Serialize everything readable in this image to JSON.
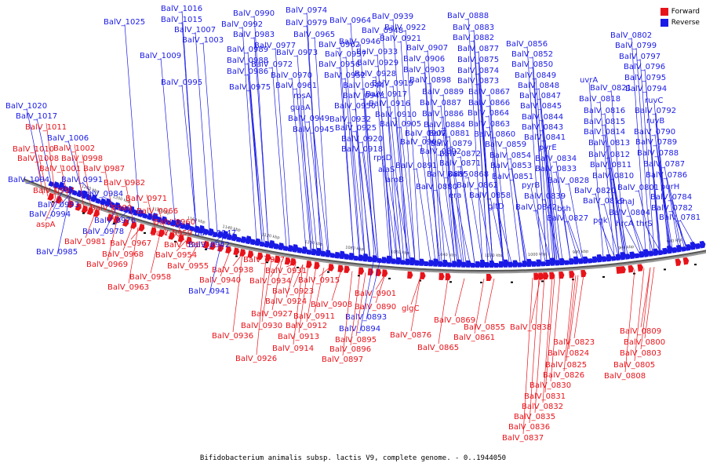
{
  "title": "Bifidobacterium animalis subsp. lactis V9, complete genome. - 0..1944050",
  "legend": {
    "forward": {
      "label": "Forward",
      "color": "#e8131a"
    },
    "reverse": {
      "label": "Reverse",
      "color": "#1a1ae6"
    }
  },
  "ticks": [
    "1220 kbp",
    "1200 kbp",
    "1180 kbp",
    "1160 kbp",
    "1140 kbp",
    "1120 kbp",
    "1100 kbp",
    "1080 kbp",
    "1060 kbp",
    "1040 kbp",
    "1020 kbp",
    "1000 kbp",
    "980 kbp",
    "960 kbp",
    "940 kbp"
  ],
  "genes": [
    {
      "name": "BalV_1016",
      "strand": "reverse"
    },
    {
      "name": "BalV_1025",
      "strand": "reverse"
    },
    {
      "name": "BalV_1015",
      "strand": "reverse"
    },
    {
      "name": "BalV_1007",
      "strand": "reverse"
    },
    {
      "name": "BalV_1003",
      "strand": "reverse"
    },
    {
      "name": "BalV_1009",
      "strand": "reverse"
    },
    {
      "name": "BalV_0995",
      "strand": "reverse"
    },
    {
      "name": "BalV_1020",
      "strand": "reverse"
    },
    {
      "name": "BalV_1017",
      "strand": "reverse"
    },
    {
      "name": "BalV_1011",
      "strand": "forward"
    },
    {
      "name": "BalV_1006",
      "strand": "reverse"
    },
    {
      "name": "BalV_1010",
      "strand": "forward"
    },
    {
      "name": "BalV_1002",
      "strand": "forward"
    },
    {
      "name": "BalV_1008",
      "strand": "forward"
    },
    {
      "name": "BalV_0998",
      "strand": "forward"
    },
    {
      "name": "BalV_1001",
      "strand": "forward"
    },
    {
      "name": "BalV_0987",
      "strand": "forward"
    },
    {
      "name": "BalV_1004",
      "strand": "reverse"
    },
    {
      "name": "BalV_0991",
      "strand": "reverse"
    },
    {
      "name": "BalV_0982",
      "strand": "forward"
    },
    {
      "name": "BalV_0997",
      "strand": "forward"
    },
    {
      "name": "BalV_0984",
      "strand": "reverse"
    },
    {
      "name": "BalV_0971",
      "strand": "forward"
    },
    {
      "name": "BalV_0993",
      "strand": "reverse"
    },
    {
      "name": "BalV_0980",
      "strand": "forward"
    },
    {
      "name": "BalV_0966",
      "strand": "forward"
    },
    {
      "name": "BalV_0994",
      "strand": "reverse"
    },
    {
      "name": "BalV_0976",
      "strand": "reverse"
    },
    {
      "name": "aspA",
      "strand": "forward"
    },
    {
      "name": "BalV_0960",
      "strand": "forward"
    },
    {
      "name": "BalV_0978",
      "strand": "reverse"
    },
    {
      "name": "BalV_0959",
      "strand": "forward"
    },
    {
      "name": "BalV_0947",
      "strand": "reverse"
    },
    {
      "name": "BalV_0981",
      "strand": "forward"
    },
    {
      "name": "BalV_0967",
      "strand": "forward"
    },
    {
      "name": "BalV_0953",
      "strand": "forward"
    },
    {
      "name": "BalV_0942",
      "strand": "reverse"
    },
    {
      "name": "BalV_0985",
      "strand": "reverse"
    },
    {
      "name": "BalV_0968",
      "strand": "forward"
    },
    {
      "name": "BalV_0954",
      "strand": "forward"
    },
    {
      "name": "BalV_0969",
      "strand": "forward"
    },
    {
      "name": "BalV_0955",
      "strand": "forward"
    },
    {
      "name": "BalV_0958",
      "strand": "forward"
    },
    {
      "name": "BalV_0963",
      "strand": "forward"
    },
    {
      "name": "BalV_0990",
      "strand": "reverse"
    },
    {
      "name": "BalV_0974",
      "strand": "reverse"
    },
    {
      "name": "BalV_0992",
      "strand": "reverse"
    },
    {
      "name": "BalV_0979",
      "strand": "reverse"
    },
    {
      "name": "BalV_0964",
      "strand": "reverse"
    },
    {
      "name": "BalV_0983",
      "strand": "reverse"
    },
    {
      "name": "BalV_0965",
      "strand": "reverse"
    },
    {
      "name": "BalV_0948",
      "strand": "reverse"
    },
    {
      "name": "BalV_0977",
      "strand": "reverse"
    },
    {
      "name": "BalV_0962",
      "strand": "reverse"
    },
    {
      "name": "BalV_0946",
      "strand": "reverse"
    },
    {
      "name": "BalV_0989",
      "strand": "reverse"
    },
    {
      "name": "BalV_0973",
      "strand": "reverse"
    },
    {
      "name": "BalV_0957",
      "strand": "reverse"
    },
    {
      "name": "BalV_0988",
      "strand": "reverse"
    },
    {
      "name": "BalV_0972",
      "strand": "reverse"
    },
    {
      "name": "BalV_0956",
      "strand": "reverse"
    },
    {
      "name": "BalV_0986",
      "strand": "reverse"
    },
    {
      "name": "BalV_0970",
      "strand": "reverse"
    },
    {
      "name": "BalV_0952",
      "strand": "reverse"
    },
    {
      "name": "BalV_0975",
      "strand": "reverse"
    },
    {
      "name": "BalV_0961",
      "strand": "reverse"
    },
    {
      "name": "BalV_0944",
      "strand": "reverse"
    },
    {
      "name": "rpsA",
      "strand": "reverse"
    },
    {
      "name": "BalV_0943",
      "strand": "reverse"
    },
    {
      "name": "BalV_0950",
      "strand": "reverse"
    },
    {
      "name": "guaA",
      "strand": "reverse"
    },
    {
      "name": "BalV_0949",
      "strand": "reverse"
    },
    {
      "name": "BalV_0932",
      "strand": "reverse"
    },
    {
      "name": "BalV_0945",
      "strand": "reverse"
    },
    {
      "name": "BalV_0925",
      "strand": "reverse"
    },
    {
      "name": "BalV_0920",
      "strand": "reverse"
    },
    {
      "name": "BalV_0918",
      "strand": "reverse"
    },
    {
      "name": "BalV_0939",
      "strand": "reverse"
    },
    {
      "name": "BalV_0922",
      "strand": "reverse"
    },
    {
      "name": "BalV_0921",
      "strand": "reverse"
    },
    {
      "name": "BalV_0907",
      "strand": "reverse"
    },
    {
      "name": "BalV_0933",
      "strand": "reverse"
    },
    {
      "name": "BalV_0906",
      "strand": "reverse"
    },
    {
      "name": "BalV_0929",
      "strand": "reverse"
    },
    {
      "name": "BalV_0903",
      "strand": "reverse"
    },
    {
      "name": "BalV_0928",
      "strand": "reverse"
    },
    {
      "name": "BalV_0898",
      "strand": "reverse"
    },
    {
      "name": "BalV_0919",
      "strand": "reverse"
    },
    {
      "name": "BalV_0917",
      "strand": "reverse"
    },
    {
      "name": "BalV_0916",
      "strand": "reverse"
    },
    {
      "name": "BalV_0910",
      "strand": "reverse"
    },
    {
      "name": "BalV_0905",
      "strand": "reverse"
    },
    {
      "name": "BalV_0902",
      "strand": "reverse"
    },
    {
      "name": "BalV_0900",
      "strand": "reverse"
    },
    {
      "name": "rpsD",
      "strand": "reverse"
    },
    {
      "name": "BalV_0892",
      "strand": "reverse"
    },
    {
      "name": "alaS",
      "strand": "reverse"
    },
    {
      "name": "BalV_0891",
      "strand": "reverse"
    },
    {
      "name": "aroB",
      "strand": "reverse"
    },
    {
      "name": "BalV_0885",
      "strand": "reverse"
    },
    {
      "name": "BalV_0880",
      "strand": "reverse"
    },
    {
      "name": "era",
      "strand": "reverse"
    },
    {
      "name": "BalV_0888",
      "strand": "reverse"
    },
    {
      "name": "BalV_0883",
      "strand": "reverse"
    },
    {
      "name": "BalV_0882",
      "strand": "reverse"
    },
    {
      "name": "BalV_0877",
      "strand": "reverse"
    },
    {
      "name": "BalV_0875",
      "strand": "reverse"
    },
    {
      "name": "BalV_0874",
      "strand": "reverse"
    },
    {
      "name": "BalV_0873",
      "strand": "reverse"
    },
    {
      "name": "BalV_0889",
      "strand": "reverse"
    },
    {
      "name": "BalV_0867",
      "strand": "reverse"
    },
    {
      "name": "BalV_0887",
      "strand": "reverse"
    },
    {
      "name": "BalV_0866",
      "strand": "reverse"
    },
    {
      "name": "BalV_0886",
      "strand": "reverse"
    },
    {
      "name": "BalV_0864",
      "strand": "reverse"
    },
    {
      "name": "BalV_0884",
      "strand": "reverse"
    },
    {
      "name": "BalV_0863",
      "strand": "reverse"
    },
    {
      "name": "BalV_0881",
      "strand": "reverse"
    },
    {
      "name": "BalV_0860",
      "strand": "reverse"
    },
    {
      "name": "BalV_0879",
      "strand": "reverse"
    },
    {
      "name": "BalV_0859",
      "strand": "reverse"
    },
    {
      "name": "BalV_0872",
      "strand": "reverse"
    },
    {
      "name": "BalV_0854",
      "strand": "reverse"
    },
    {
      "name": "BalV_0871",
      "strand": "reverse"
    },
    {
      "name": "BalV_0853",
      "strand": "reverse"
    },
    {
      "name": "BalV_0868",
      "strand": "reverse"
    },
    {
      "name": "BalV_0851",
      "strand": "reverse"
    },
    {
      "name": "BalV_0862",
      "strand": "reverse"
    },
    {
      "name": "BalV_0858",
      "strand": "reverse"
    },
    {
      "name": "gltD",
      "strand": "reverse"
    },
    {
      "name": "BalV_0856",
      "strand": "reverse"
    },
    {
      "name": "BalV_0852",
      "strand": "reverse"
    },
    {
      "name": "BalV_0850",
      "strand": "reverse"
    },
    {
      "name": "BalV_0849",
      "strand": "reverse"
    },
    {
      "name": "BalV_0848",
      "strand": "reverse"
    },
    {
      "name": "BalV_0847",
      "strand": "reverse"
    },
    {
      "name": "BalV_0845",
      "strand": "reverse"
    },
    {
      "name": "BalV_0844",
      "strand": "reverse"
    },
    {
      "name": "BalV_0843",
      "strand": "reverse"
    },
    {
      "name": "BalV_0841",
      "strand": "reverse"
    },
    {
      "name": "pyrE",
      "strand": "reverse"
    },
    {
      "name": "BalV_0834",
      "strand": "reverse"
    },
    {
      "name": "BalV_0833",
      "strand": "reverse"
    },
    {
      "name": "BalV_0828",
      "strand": "reverse"
    },
    {
      "name": "pyrB",
      "strand": "reverse"
    },
    {
      "name": "BalV_0839",
      "strand": "reverse"
    },
    {
      "name": "BalV_0842",
      "strand": "reverse"
    },
    {
      "name": "bsh",
      "strand": "reverse"
    },
    {
      "name": "BalV_0827",
      "strand": "reverse"
    },
    {
      "name": "uvrA",
      "strand": "reverse"
    },
    {
      "name": "BalV_0821",
      "strand": "reverse"
    },
    {
      "name": "BalV_0818",
      "strand": "reverse"
    },
    {
      "name": "BalV_0816",
      "strand": "reverse"
    },
    {
      "name": "BalV_0815",
      "strand": "reverse"
    },
    {
      "name": "BalV_0814",
      "strand": "reverse"
    },
    {
      "name": "BalV_0813",
      "strand": "reverse"
    },
    {
      "name": "BalV_0812",
      "strand": "reverse"
    },
    {
      "name": "BalV_0811",
      "strand": "reverse"
    },
    {
      "name": "BalV_0810",
      "strand": "reverse"
    },
    {
      "name": "BalV_0820",
      "strand": "reverse"
    },
    {
      "name": "BalV_0819",
      "strand": "reverse"
    },
    {
      "name": "pgk",
      "strand": "reverse"
    },
    {
      "name": "dnaJ",
      "strand": "reverse"
    },
    {
      "name": "hrcA",
      "strand": "reverse"
    },
    {
      "name": "BalV_0804",
      "strand": "reverse"
    },
    {
      "name": "thrS",
      "strand": "reverse"
    },
    {
      "name": "BalV_0801",
      "strand": "reverse"
    },
    {
      "name": "BalV_0802",
      "strand": "reverse"
    },
    {
      "name": "BalV_0799",
      "strand": "reverse"
    },
    {
      "name": "BalV_0797",
      "strand": "reverse"
    },
    {
      "name": "BalV_0796",
      "strand": "reverse"
    },
    {
      "name": "BalV_0795",
      "strand": "reverse"
    },
    {
      "name": "BalV_0794",
      "strand": "reverse"
    },
    {
      "name": "ruvC",
      "strand": "reverse"
    },
    {
      "name": "BalV_0792",
      "strand": "reverse"
    },
    {
      "name": "ruvB",
      "strand": "reverse"
    },
    {
      "name": "BalV_0790",
      "strand": "reverse"
    },
    {
      "name": "BalV_0789",
      "strand": "reverse"
    },
    {
      "name": "BalV_0788",
      "strand": "reverse"
    },
    {
      "name": "BalV_0787",
      "strand": "reverse"
    },
    {
      "name": "BalV_0786",
      "strand": "reverse"
    },
    {
      "name": "purH",
      "strand": "reverse"
    },
    {
      "name": "BalV_0784",
      "strand": "reverse"
    },
    {
      "name": "BalV_0782",
      "strand": "reverse"
    },
    {
      "name": "BalV_0781",
      "strand": "reverse"
    },
    {
      "name": "BalV_0937",
      "strand": "forward"
    },
    {
      "name": "BalV_0938",
      "strand": "forward"
    },
    {
      "name": "BalV_0931",
      "strand": "forward"
    },
    {
      "name": "BalV_0940",
      "strand": "forward"
    },
    {
      "name": "BalV_0934",
      "strand": "forward"
    },
    {
      "name": "BalV_0915",
      "strand": "forward"
    },
    {
      "name": "BalV_0941",
      "strand": "reverse"
    },
    {
      "name": "BalV_0923",
      "strand": "forward"
    },
    {
      "name": "BalV_0924",
      "strand": "forward"
    },
    {
      "name": "BalV_0901",
      "strand": "forward"
    },
    {
      "name": "BalV_0908",
      "strand": "forward"
    },
    {
      "name": "BalV_0890",
      "strand": "forward"
    },
    {
      "name": "BalV_0927",
      "strand": "forward"
    },
    {
      "name": "BalV_0911",
      "strand": "forward"
    },
    {
      "name": "BalV_0893",
      "strand": "reverse"
    },
    {
      "name": "BalV_0930",
      "strand": "forward"
    },
    {
      "name": "BalV_0912",
      "strand": "forward"
    },
    {
      "name": "BalV_0894",
      "strand": "reverse"
    },
    {
      "name": "BalV_0936",
      "strand": "forward"
    },
    {
      "name": "BalV_0913",
      "strand": "forward"
    },
    {
      "name": "BalV_0895",
      "strand": "forward"
    },
    {
      "name": "BalV_0914",
      "strand": "forward"
    },
    {
      "name": "BalV_0896",
      "strand": "forward"
    },
    {
      "name": "BalV_0926",
      "strand": "forward"
    },
    {
      "name": "BalV_0897",
      "strand": "forward"
    },
    {
      "name": "glgC",
      "strand": "forward"
    },
    {
      "name": "BalV_0869",
      "strand": "forward"
    },
    {
      "name": "BalV_0876",
      "strand": "forward"
    },
    {
      "name": "BalV_0861",
      "strand": "forward"
    },
    {
      "name": "BalV_0865",
      "strand": "forward"
    },
    {
      "name": "BalV_0855",
      "strand": "forward"
    },
    {
      "name": "BalV_0838",
      "strand": "forward"
    },
    {
      "name": "BalV_0823",
      "strand": "forward"
    },
    {
      "name": "BalV_0824",
      "strand": "forward"
    },
    {
      "name": "BalV_0825",
      "strand": "forward"
    },
    {
      "name": "BalV_0826",
      "strand": "forward"
    },
    {
      "name": "BalV_0830",
      "strand": "forward"
    },
    {
      "name": "BalV_0831",
      "strand": "forward"
    },
    {
      "name": "BalV_0832",
      "strand": "forward"
    },
    {
      "name": "BalV_0835",
      "strand": "forward"
    },
    {
      "name": "BalV_0836",
      "strand": "forward"
    },
    {
      "name": "BalV_0837",
      "strand": "forward"
    },
    {
      "name": "BalV_0809",
      "strand": "forward"
    },
    {
      "name": "BalV_0800",
      "strand": "forward"
    },
    {
      "name": "BalV_0803",
      "strand": "forward"
    },
    {
      "name": "BalV_0805",
      "strand": "forward"
    },
    {
      "name": "BalV_0808",
      "strand": "forward"
    }
  ]
}
